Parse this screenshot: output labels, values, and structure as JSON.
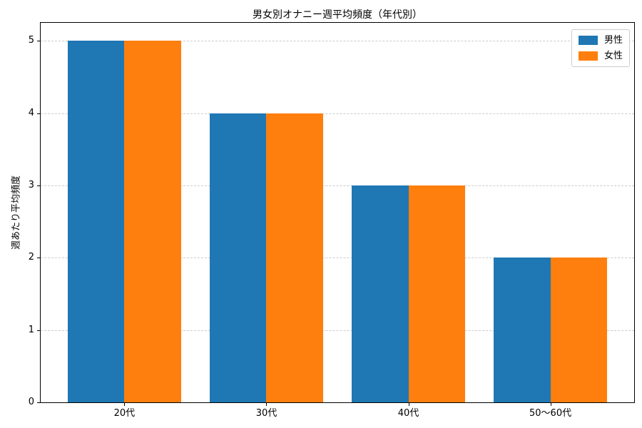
{
  "figure": {
    "background": "#ffffff",
    "text_color": "#000000",
    "grid_color": "#cccccc"
  },
  "chart_data": {
    "type": "bar",
    "title": "男女別オナニー週平均頻度（年代別）",
    "xlabel": "",
    "ylabel": "週あたり平均頻度",
    "categories": [
      "20代",
      "30代",
      "40代",
      "50～60代"
    ],
    "series": [
      {
        "name": "男性",
        "color": "#1f77b4",
        "values": [
          5,
          4,
          3,
          2
        ]
      },
      {
        "name": "女性",
        "color": "#ff7f0e",
        "values": [
          5,
          4,
          3,
          2
        ]
      }
    ],
    "ylim": [
      0,
      5.25
    ],
    "yticks": [
      0,
      1,
      2,
      3,
      4,
      5
    ],
    "grid": "horizontal-dashed",
    "legend_position": "upper-right"
  }
}
